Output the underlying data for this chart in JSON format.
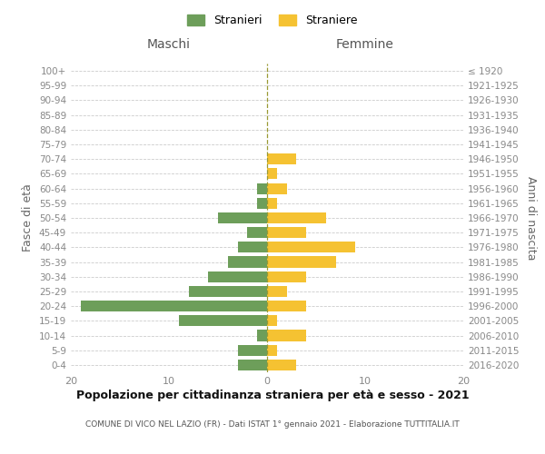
{
  "age_groups": [
    "0-4",
    "5-9",
    "10-14",
    "15-19",
    "20-24",
    "25-29",
    "30-34",
    "35-39",
    "40-44",
    "45-49",
    "50-54",
    "55-59",
    "60-64",
    "65-69",
    "70-74",
    "75-79",
    "80-84",
    "85-89",
    "90-94",
    "95-99",
    "100+"
  ],
  "birth_years": [
    "2016-2020",
    "2011-2015",
    "2006-2010",
    "2001-2005",
    "1996-2000",
    "1991-1995",
    "1986-1990",
    "1981-1985",
    "1976-1980",
    "1971-1975",
    "1966-1970",
    "1961-1965",
    "1956-1960",
    "1951-1955",
    "1946-1950",
    "1941-1945",
    "1936-1940",
    "1931-1935",
    "1926-1930",
    "1921-1925",
    "≤ 1920"
  ],
  "males": [
    3,
    3,
    1,
    9,
    19,
    8,
    6,
    4,
    3,
    2,
    5,
    1,
    1,
    0,
    0,
    0,
    0,
    0,
    0,
    0,
    0
  ],
  "females": [
    3,
    1,
    4,
    1,
    4,
    2,
    4,
    7,
    9,
    4,
    6,
    1,
    2,
    1,
    3,
    0,
    0,
    0,
    0,
    0,
    0
  ],
  "male_color": "#6d9e5a",
  "female_color": "#f5c232",
  "title": "Popolazione per cittadinanza straniera per età e sesso - 2021",
  "subtitle": "COMUNE DI VICO NEL LAZIO (FR) - Dati ISTAT 1° gennaio 2021 - Elaborazione TUTTITALIA.IT",
  "xlabel_left": "Maschi",
  "xlabel_right": "Femmine",
  "ylabel_left": "Fasce di età",
  "ylabel_right": "Anni di nascita",
  "legend_stranieri": "Stranieri",
  "legend_straniere": "Straniere",
  "xlim": 20,
  "background_color": "#ffffff",
  "grid_color": "#cccccc",
  "zero_line_color": "#999933"
}
